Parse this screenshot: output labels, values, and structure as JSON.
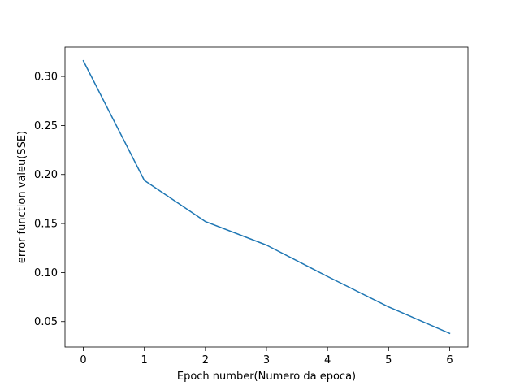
{
  "chart_data": {
    "type": "line",
    "title": "",
    "xlabel": "Epoch number(Numero da epoca)",
    "ylabel": "error function valeu(SSE)",
    "x": [
      0,
      1,
      2,
      3,
      4,
      5,
      6
    ],
    "series": [
      {
        "values": [
          0.316,
          0.194,
          0.152,
          0.128,
          0.096,
          0.065,
          0.038
        ]
      }
    ],
    "xlim": [
      -0.3,
      6.3
    ],
    "ylim": [
      0.0241,
      0.3299
    ],
    "xticks": [
      0,
      1,
      2,
      3,
      4,
      5,
      6
    ],
    "xtick_labels": [
      "0",
      "1",
      "2",
      "3",
      "4",
      "5",
      "6"
    ],
    "yticks": [
      0.05,
      0.1,
      0.15,
      0.2,
      0.25,
      0.3
    ],
    "ytick_labels": [
      "0.05",
      "0.10",
      "0.15",
      "0.20",
      "0.25",
      "0.30"
    ],
    "grid": false,
    "line_color": "#1f77b4"
  }
}
